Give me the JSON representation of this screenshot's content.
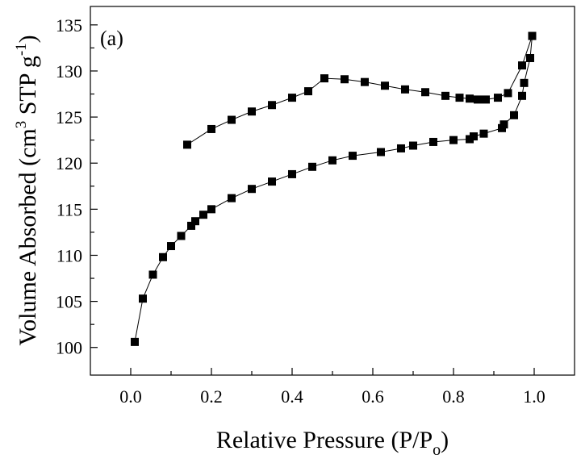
{
  "chart_data": {
    "type": "scatter",
    "panel_label": "(a)",
    "xlabel": {
      "main": "Relative Pressure (P/P",
      "sub": "o",
      "close": ")"
    },
    "ylabel": {
      "main": "Volume Absorbed (cm",
      "sup1": "3",
      "mid": " STP g",
      "sup2": "-1",
      "close": ")"
    },
    "xlim": [
      -0.1,
      1.1
    ],
    "ylim": [
      97,
      137
    ],
    "x_ticks": [
      {
        "value": 0.0,
        "label": "0.0"
      },
      {
        "value": 0.2,
        "label": "0.2"
      },
      {
        "value": 0.4,
        "label": "0.4"
      },
      {
        "value": 0.6,
        "label": "0.6"
      },
      {
        "value": 0.8,
        "label": "0.8"
      },
      {
        "value": 1.0,
        "label": "1.0"
      }
    ],
    "y_ticks": [
      {
        "value": 100,
        "label": "100"
      },
      {
        "value": 105,
        "label": "105"
      },
      {
        "value": 110,
        "label": "110"
      },
      {
        "value": 115,
        "label": "115"
      },
      {
        "value": 120,
        "label": "120"
      },
      {
        "value": 125,
        "label": "125"
      },
      {
        "value": 130,
        "label": "130"
      },
      {
        "value": 135,
        "label": "135"
      }
    ],
    "grid": false,
    "marker": "square",
    "series": [
      {
        "color": "#000000",
        "points": [
          [
            0.01,
            100.6
          ],
          [
            0.03,
            105.3
          ],
          [
            0.055,
            107.9
          ],
          [
            0.08,
            109.8
          ],
          [
            0.1,
            111.0
          ],
          [
            0.125,
            112.1
          ],
          [
            0.15,
            113.2
          ],
          [
            0.16,
            113.7
          ],
          [
            0.18,
            114.4
          ],
          [
            0.2,
            115.0
          ],
          [
            0.25,
            116.2
          ],
          [
            0.3,
            117.2
          ],
          [
            0.35,
            118.0
          ],
          [
            0.4,
            118.8
          ],
          [
            0.45,
            119.6
          ],
          [
            0.5,
            120.3
          ],
          [
            0.55,
            120.8
          ],
          [
            0.62,
            121.2
          ],
          [
            0.67,
            121.6
          ],
          [
            0.7,
            121.9
          ],
          [
            0.75,
            122.3
          ],
          [
            0.8,
            122.5
          ],
          [
            0.84,
            122.6
          ],
          [
            0.85,
            122.9
          ],
          [
            0.875,
            123.2
          ],
          [
            0.92,
            123.8
          ],
          [
            0.925,
            124.2
          ],
          [
            0.95,
            125.2
          ],
          [
            0.97,
            127.3
          ],
          [
            0.975,
            128.7
          ],
          [
            0.99,
            131.4
          ],
          [
            0.995,
            133.8
          ]
        ]
      },
      {
        "color": "#000000",
        "points": [
          [
            0.995,
            133.8
          ],
          [
            0.97,
            130.6
          ],
          [
            0.935,
            127.6
          ],
          [
            0.91,
            127.1
          ],
          [
            0.88,
            126.9
          ],
          [
            0.86,
            126.9
          ],
          [
            0.84,
            127.0
          ],
          [
            0.815,
            127.1
          ],
          [
            0.78,
            127.3
          ],
          [
            0.73,
            127.7
          ],
          [
            0.68,
            128.0
          ],
          [
            0.63,
            128.4
          ],
          [
            0.58,
            128.8
          ],
          [
            0.53,
            129.1
          ],
          [
            0.48,
            129.2
          ],
          [
            0.44,
            127.8
          ],
          [
            0.4,
            127.1
          ],
          [
            0.35,
            126.3
          ],
          [
            0.3,
            125.6
          ],
          [
            0.25,
            124.7
          ],
          [
            0.2,
            123.7
          ],
          [
            0.14,
            122.0
          ]
        ]
      }
    ]
  }
}
